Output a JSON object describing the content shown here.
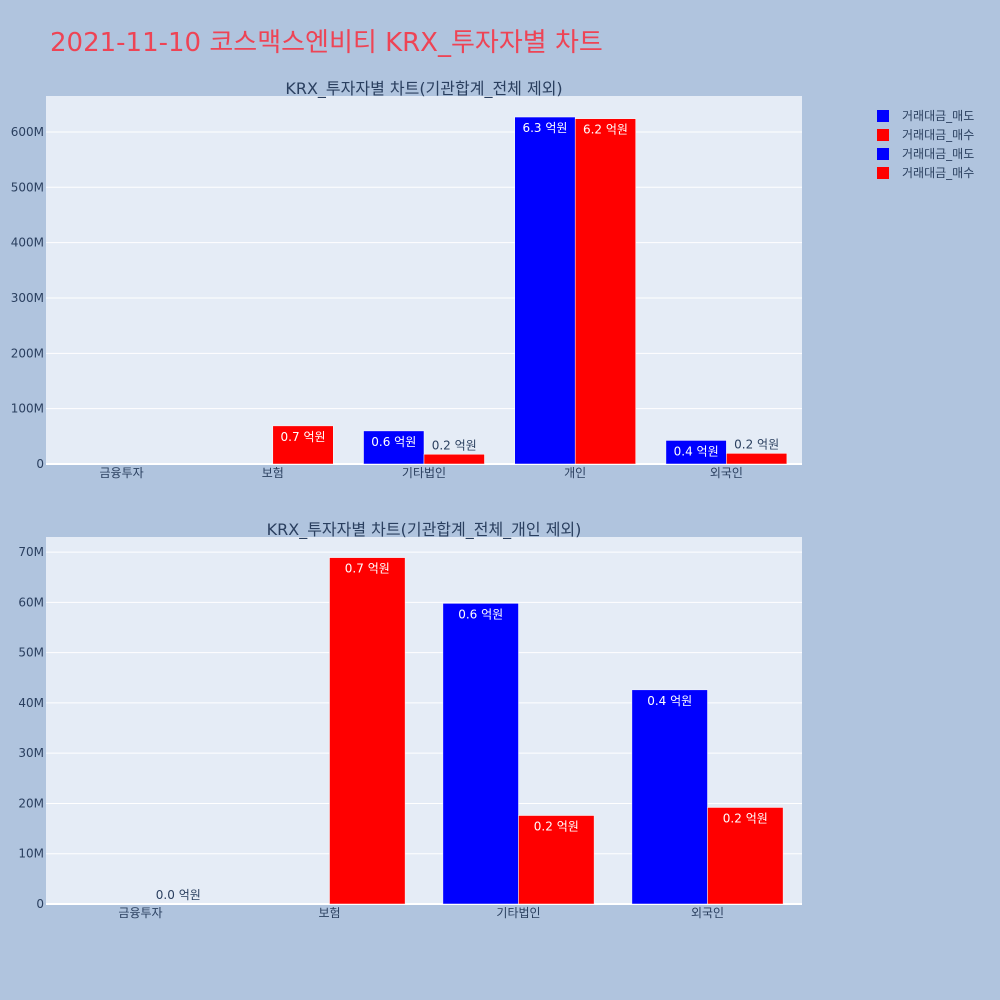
{
  "page": {
    "title": "2021-11-10 코스맥스엔비티 KRX_투자자별 차트"
  },
  "colors": {
    "background": "#b0c4de",
    "plot_bg": "#e5ecf6",
    "sell": "#0000ff",
    "buy": "#ff0000",
    "title": "#ee4455",
    "text": "#2a3f5f"
  },
  "legend": [
    {
      "name": "거래대금_매도",
      "color": "#0000ff"
    },
    {
      "name": "거래대금_매수",
      "color": "#ff0000"
    },
    {
      "name": "거래대금_매도",
      "color": "#0000ff"
    },
    {
      "name": "거래대금_매수",
      "color": "#ff0000"
    }
  ],
  "chart_data": [
    {
      "type": "bar",
      "title": "KRX_투자자별 차트(기관합계_전체 제외)",
      "categories": [
        "금융투자",
        "보험",
        "기타법인",
        "개인",
        "외국인"
      ],
      "ylim": [
        0,
        665000000
      ],
      "yticks": [
        0,
        100000000,
        200000000,
        300000000,
        400000000,
        500000000,
        600000000
      ],
      "ytick_labels": [
        "0",
        "100M",
        "200M",
        "300M",
        "400M",
        "500M",
        "600M"
      ],
      "series": [
        {
          "name": "거래대금_매도",
          "color": "#0000ff",
          "values": [
            0,
            0,
            59800000,
            627000000,
            42600000
          ],
          "labels": [
            "",
            "",
            "0.6 억원",
            "6.3 억원",
            "0.4 억원"
          ]
        },
        {
          "name": "거래대금_매수",
          "color": "#ff0000",
          "values": [
            0,
            68900000,
            17600000,
            624000000,
            19200000
          ],
          "labels": [
            "",
            "0.7 억원",
            "0.2 억원",
            "6.2 억원",
            "0.2 억원"
          ]
        }
      ]
    },
    {
      "type": "bar",
      "title": "KRX_투자자별 차트(기관합계_전체_개인 제외)",
      "categories": [
        "금융투자",
        "보험",
        "기타법인",
        "외국인"
      ],
      "ylim": [
        0,
        73000000
      ],
      "yticks": [
        0,
        10000000,
        20000000,
        30000000,
        40000000,
        50000000,
        60000000,
        70000000
      ],
      "ytick_labels": [
        "0",
        "10M",
        "20M",
        "30M",
        "40M",
        "50M",
        "60M",
        "70M"
      ],
      "series": [
        {
          "name": "거래대금_매도",
          "color": "#0000ff",
          "values": [
            0,
            0,
            59800000,
            42600000
          ],
          "labels": [
            "",
            "",
            "0.6 억원",
            "0.4 억원"
          ]
        },
        {
          "name": "거래대금_매수",
          "color": "#ff0000",
          "values": [
            0,
            68900000,
            17600000,
            19200000
          ],
          "labels": [
            "0.0 억원",
            "0.7 억원",
            "0.2 억원",
            "0.2 억원"
          ]
        }
      ]
    }
  ]
}
